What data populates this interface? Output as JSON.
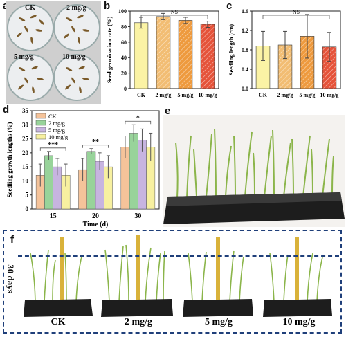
{
  "panels": {
    "a": {
      "letter": "a",
      "dishes": [
        {
          "label": "CK"
        },
        {
          "label": "2 mg/g"
        },
        {
          "label": "5 mg/g"
        },
        {
          "label": "10 mg/g"
        }
      ]
    },
    "b": {
      "letter": "b"
    },
    "c": {
      "letter": "c"
    },
    "d": {
      "letter": "d"
    },
    "e": {
      "letter": "e"
    },
    "f": {
      "letter": "f",
      "side_label": "30 days",
      "groups": [
        "CK",
        "2 mg/g",
        "5 mg/g",
        "10 mg/g"
      ]
    }
  },
  "colors": {
    "ck": "#fbf3a5",
    "t2": "#f2bd73",
    "t5": "#ee9a3e",
    "t10": "#e5533a",
    "d_ck": "#f5c39a",
    "d_2": "#98d39a",
    "d_5": "#c7b4e0",
    "d_10": "#f7f0a0",
    "frame": "#1f3f7a"
  },
  "chart_data": [
    {
      "type": "bar",
      "panel": "b",
      "categories": [
        "CK",
        "2 mg/g",
        "5 mg/g",
        "10 mg/g"
      ],
      "values": [
        85,
        93,
        88,
        83
      ],
      "errors": [
        7,
        4,
        4,
        4
      ],
      "xlabel": "",
      "ylabel": "Seed germination rate (%)",
      "ylim": [
        0,
        100
      ],
      "yticks": [
        "0",
        "20",
        "40",
        "60",
        "80",
        "100"
      ],
      "annotation": "NS"
    },
    {
      "type": "bar",
      "panel": "c",
      "categories": [
        "CK",
        "2 mg/g",
        "5 mg/g",
        "10 mg/g"
      ],
      "values": [
        0.88,
        0.9,
        1.08,
        0.86
      ],
      "errors": [
        0.3,
        0.28,
        0.45,
        0.3
      ],
      "xlabel": "",
      "ylabel": "Seedling length (cm)",
      "ylim": [
        0,
        1.6
      ],
      "yticks": [
        "0.0",
        "0.4",
        "0.8",
        "1.2",
        "1.6"
      ],
      "annotation": "NS"
    },
    {
      "type": "bar",
      "panel": "d",
      "categories": [
        "15",
        "20",
        "30"
      ],
      "series": [
        {
          "name": "CK",
          "values": [
            12,
            14,
            22
          ],
          "errors": [
            4,
            4,
            4
          ]
        },
        {
          "name": "2  mg/g",
          "values": [
            19,
            20.5,
            27
          ],
          "errors": [
            1.5,
            1,
            3
          ]
        },
        {
          "name": "5  mg/g",
          "values": [
            15,
            17,
            24.5
          ],
          "errors": [
            3,
            3,
            4
          ]
        },
        {
          "name": "10 mg/g",
          "values": [
            12,
            15,
            22
          ],
          "errors": [
            4,
            4,
            5
          ]
        }
      ],
      "xlabel": "Time (d)",
      "ylabel": "Seedling growth lengths (%)",
      "ylim": [
        0,
        35
      ],
      "yticks": [
        "0",
        "5",
        "10",
        "15",
        "20",
        "25",
        "30",
        "35"
      ],
      "annotations": [
        "***",
        "**",
        "*"
      ],
      "legend": "top-left"
    }
  ]
}
